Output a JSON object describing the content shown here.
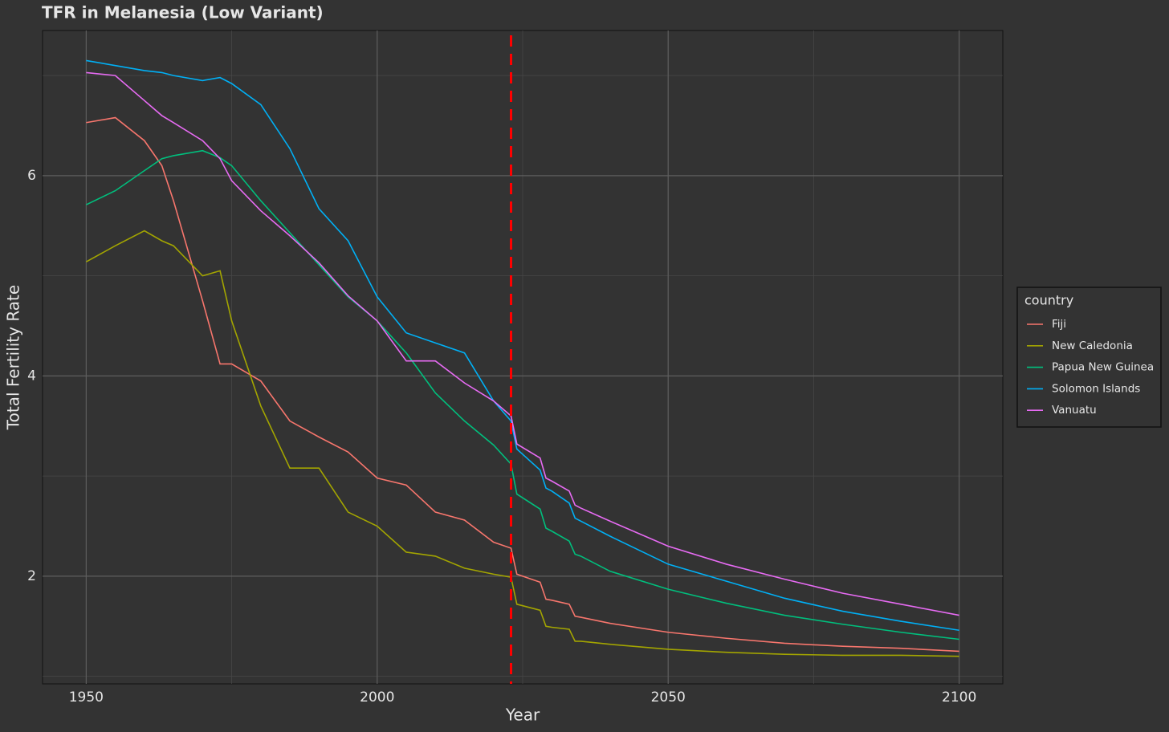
{
  "chart_data": {
    "type": "line",
    "title": "TFR in Melanesia (Low Variant)",
    "x_label": "Year",
    "y_label": "Total Fertility Rate",
    "legend_title": "country",
    "legend_position": "right",
    "grid": true,
    "x": [
      1950,
      1955,
      1960,
      1963,
      1965,
      1970,
      1973,
      1975,
      1980,
      1985,
      1990,
      1995,
      2000,
      2005,
      2010,
      2015,
      2020,
      2023,
      2024,
      2028,
      2029,
      2030,
      2033,
      2034,
      2035,
      2040,
      2050,
      2060,
      2070,
      2080,
      2090,
      2100
    ],
    "xlim": [
      1942.5,
      2107.5
    ],
    "xticks": [
      1950,
      2000,
      2050,
      2100
    ],
    "xminor": [
      1975,
      2025,
      2075
    ],
    "ylim": [
      0.925,
      7.45
    ],
    "yticks": [
      2,
      4,
      6
    ],
    "yminor": [
      1,
      3,
      5,
      7
    ],
    "vline": {
      "x": 2023,
      "color": "#ff0000",
      "dashed": true
    },
    "series": [
      {
        "name": "Fiji",
        "color": "#f8766d",
        "values": [
          6.53,
          6.58,
          6.35,
          6.1,
          5.75,
          4.75,
          4.12,
          4.12,
          3.95,
          3.55,
          3.39,
          3.24,
          2.98,
          2.91,
          2.64,
          2.56,
          2.34,
          2.28,
          2.02,
          1.94,
          1.77,
          1.76,
          1.72,
          1.6,
          1.59,
          1.53,
          1.44,
          1.38,
          1.33,
          1.3,
          1.28,
          1.25
        ]
      },
      {
        "name": "New Caledonia",
        "color": "#a3a500",
        "values": [
          5.14,
          5.3,
          5.45,
          5.35,
          5.3,
          5.0,
          5.05,
          4.55,
          3.7,
          3.08,
          3.08,
          2.64,
          2.5,
          2.24,
          2.2,
          2.08,
          2.02,
          1.99,
          1.72,
          1.66,
          1.5,
          1.49,
          1.47,
          1.35,
          1.35,
          1.32,
          1.27,
          1.24,
          1.22,
          1.21,
          1.21,
          1.2
        ]
      },
      {
        "name": "Papua New Guinea",
        "color": "#00bf7d",
        "values": [
          5.71,
          5.85,
          6.05,
          6.17,
          6.2,
          6.25,
          6.18,
          6.1,
          5.75,
          5.43,
          5.11,
          4.79,
          4.55,
          4.23,
          3.83,
          3.55,
          3.31,
          3.12,
          2.82,
          2.67,
          2.48,
          2.45,
          2.35,
          2.22,
          2.2,
          2.05,
          1.87,
          1.73,
          1.61,
          1.52,
          1.44,
          1.37
        ]
      },
      {
        "name": "Solomon Islands",
        "color": "#00b0f6",
        "values": [
          7.15,
          7.1,
          7.05,
          7.03,
          7.0,
          6.95,
          6.98,
          6.92,
          6.71,
          6.27,
          5.67,
          5.35,
          4.79,
          4.43,
          4.33,
          4.23,
          3.75,
          3.55,
          3.27,
          3.06,
          2.88,
          2.85,
          2.73,
          2.58,
          2.55,
          2.4,
          2.12,
          1.95,
          1.78,
          1.65,
          1.55,
          1.46
        ]
      },
      {
        "name": "Vanuatu",
        "color": "#e76bf3",
        "values": [
          7.03,
          7.0,
          6.75,
          6.6,
          6.53,
          6.35,
          6.17,
          5.95,
          5.65,
          5.4,
          5.13,
          4.8,
          4.55,
          4.15,
          4.15,
          3.93,
          3.75,
          3.6,
          3.32,
          3.18,
          2.98,
          2.95,
          2.85,
          2.71,
          2.68,
          2.55,
          2.3,
          2.12,
          1.97,
          1.83,
          1.72,
          1.61
        ]
      }
    ]
  }
}
